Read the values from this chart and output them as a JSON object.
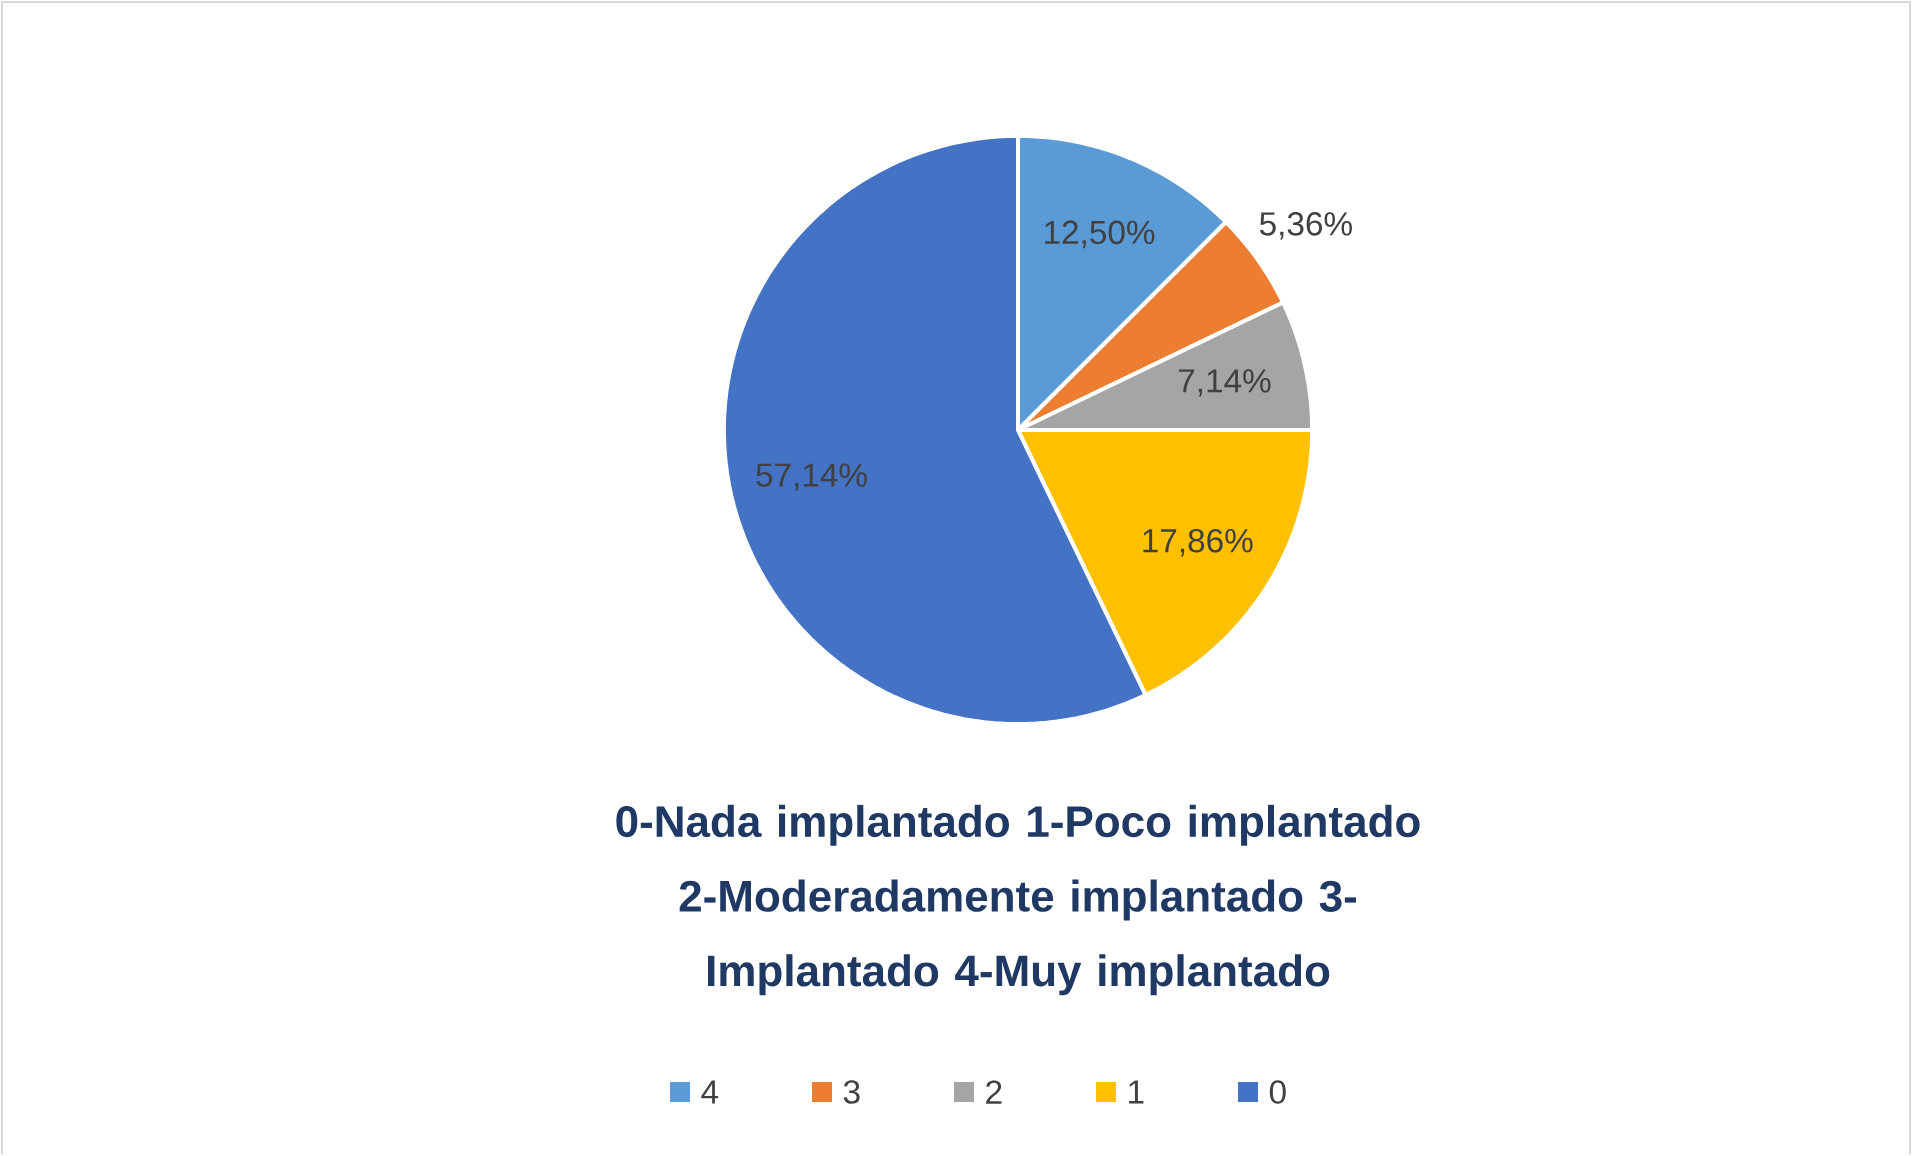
{
  "chart_data": {
    "type": "pie",
    "title": "0-Nada implantado 1-Poco implantado 2-Moderadamente implantado 3-Implantado 4-Muy implantado",
    "categories": [
      "4",
      "3",
      "2",
      "1",
      "0"
    ],
    "values": [
      12.5,
      5.36,
      7.14,
      17.86,
      57.14
    ],
    "colors": [
      "#5b9bd5",
      "#ed7d31",
      "#a5a5a5",
      "#ffc000",
      "#4472c4"
    ],
    "value_labels": [
      "12,50%",
      "5,36%",
      "7,14%",
      "17,86%",
      "57,14%"
    ],
    "legend": "bottom"
  }
}
